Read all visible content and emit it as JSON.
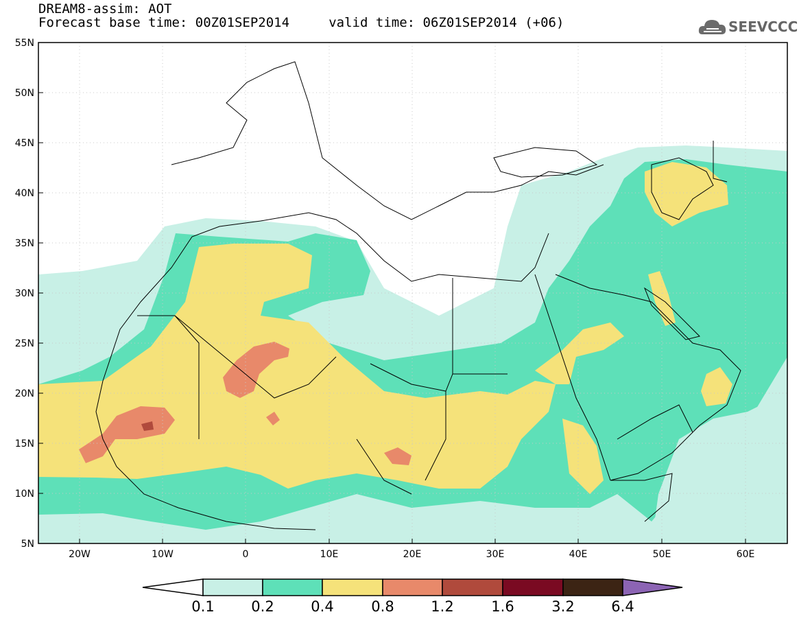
{
  "header": {
    "title": "DREAM8-assim: AOT",
    "base_time_line": "Forecast base time: 00Z01SEP2014     valid time: 06Z01SEP2014 (+06)"
  },
  "logo": {
    "text": "SEEVCCC",
    "icon": "cloud-icon"
  },
  "map": {
    "lon_range": [
      -25,
      65
    ],
    "lat_range": [
      5,
      55
    ],
    "x_ticks": [
      "20W",
      "10W",
      "0",
      "10E",
      "20E",
      "30E",
      "40E",
      "50E",
      "60E"
    ],
    "y_ticks": [
      "55N",
      "50N",
      "45N",
      "40N",
      "35N",
      "30N",
      "25N",
      "20N",
      "15N",
      "10N",
      "5N"
    ]
  },
  "colorbar": {
    "labels": [
      "0.1",
      "0.2",
      "0.4",
      "0.8",
      "1.2",
      "1.6",
      "3.2",
      "6.4"
    ],
    "colors": [
      "#c8f0e6",
      "#5ee0b8",
      "#f5e27a",
      "#e8896a",
      "#b04a3c",
      "#7a0a22",
      "#3c2414",
      "#8c64b4"
    ]
  }
}
